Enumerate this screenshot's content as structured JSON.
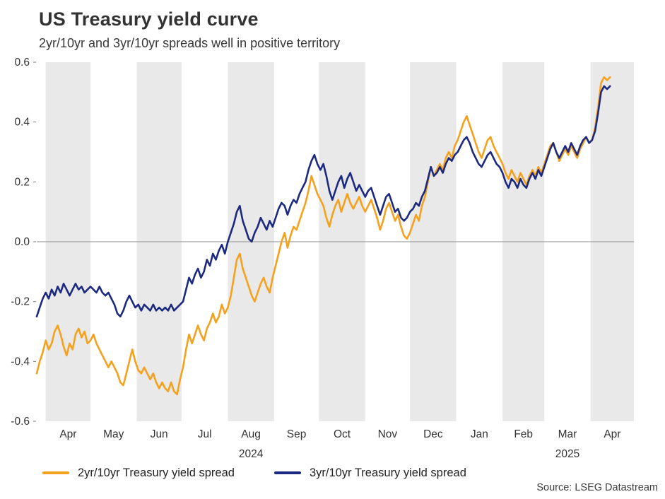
{
  "header": {
    "title": "US Treasury yield curve",
    "subtitle": "2yr/10yr and 3yr/10yr spreads well in positive territory"
  },
  "source": "Source: LSEG Datastream",
  "colors": {
    "orange": "#F6A11E",
    "navy": "#1B2A80",
    "band": "#E9E9E9",
    "zero_line": "#8E8E8E",
    "axis_text": "#333333"
  },
  "chart_data": {
    "type": "line",
    "title": "US Treasury yield curve",
    "subtitle": "2yr/10yr and 3yr/10yr spreads well in positive territory",
    "x_unit": "days since 2024-03-26",
    "x_domain": [
      0,
      400
    ],
    "y_domain": [
      -0.6,
      0.6
    ],
    "grid": "off",
    "zero_line": 0,
    "legend_position": "bottom",
    "y_ticks": [
      {
        "value": 0.6,
        "label": "0.6"
      },
      {
        "value": 0.4,
        "label": "0.4"
      },
      {
        "value": 0.2,
        "label": "0.2"
      },
      {
        "value": 0.0,
        "label": "0.0"
      },
      {
        "value": -0.2,
        "label": "-0.2"
      },
      {
        "value": -0.4,
        "label": "-0.4"
      },
      {
        "value": -0.6,
        "label": "-0.6"
      }
    ],
    "months": [
      {
        "label": "Apr",
        "start": 6,
        "end": 36,
        "shaded": true
      },
      {
        "label": "May",
        "start": 36,
        "end": 67,
        "shaded": false
      },
      {
        "label": "Jun",
        "start": 67,
        "end": 97,
        "shaded": true
      },
      {
        "label": "Jul",
        "start": 97,
        "end": 128,
        "shaded": false
      },
      {
        "label": "Aug",
        "start": 128,
        "end": 159,
        "shaded": true
      },
      {
        "label": "Sep",
        "start": 159,
        "end": 189,
        "shaded": false
      },
      {
        "label": "Oct",
        "start": 189,
        "end": 220,
        "shaded": true
      },
      {
        "label": "Nov",
        "start": 220,
        "end": 250,
        "shaded": false
      },
      {
        "label": "Dec",
        "start": 250,
        "end": 281,
        "shaded": true
      },
      {
        "label": "Jan",
        "start": 281,
        "end": 312,
        "shaded": false
      },
      {
        "label": "Feb",
        "start": 312,
        "end": 340,
        "shaded": true
      },
      {
        "label": "Mar",
        "start": 340,
        "end": 371,
        "shaded": false
      },
      {
        "label": "Apr",
        "start": 371,
        "end": 400,
        "shaded": true
      }
    ],
    "year_labels": [
      {
        "label": "2024",
        "day": 143.5
      },
      {
        "label": "2025",
        "day": 355.5
      }
    ],
    "x": {
      "start": 0,
      "step": 2,
      "count": 193
    },
    "series": [
      {
        "name": "2yr/10yr Treasury yield spread",
        "color_key": "orange",
        "values": [
          -0.44,
          -0.4,
          -0.37,
          -0.33,
          -0.36,
          -0.34,
          -0.3,
          -0.28,
          -0.31,
          -0.35,
          -0.38,
          -0.34,
          -0.36,
          -0.31,
          -0.29,
          -0.32,
          -0.3,
          -0.34,
          -0.33,
          -0.31,
          -0.34,
          -0.36,
          -0.38,
          -0.4,
          -0.42,
          -0.4,
          -0.42,
          -0.44,
          -0.47,
          -0.48,
          -0.44,
          -0.4,
          -0.36,
          -0.4,
          -0.43,
          -0.44,
          -0.42,
          -0.44,
          -0.46,
          -0.44,
          -0.47,
          -0.49,
          -0.47,
          -0.49,
          -0.5,
          -0.47,
          -0.5,
          -0.51,
          -0.46,
          -0.42,
          -0.36,
          -0.31,
          -0.34,
          -0.31,
          -0.28,
          -0.31,
          -0.33,
          -0.29,
          -0.27,
          -0.24,
          -0.27,
          -0.25,
          -0.21,
          -0.24,
          -0.22,
          -0.18,
          -0.12,
          -0.06,
          -0.04,
          -0.09,
          -0.12,
          -0.15,
          -0.18,
          -0.2,
          -0.17,
          -0.14,
          -0.12,
          -0.15,
          -0.17,
          -0.12,
          -0.08,
          -0.04,
          0.0,
          0.03,
          -0.02,
          0.02,
          0.05,
          0.04,
          0.07,
          0.1,
          0.13,
          0.17,
          0.22,
          0.19,
          0.16,
          0.14,
          0.12,
          0.08,
          0.05,
          0.09,
          0.12,
          0.14,
          0.1,
          0.13,
          0.16,
          0.13,
          0.11,
          0.13,
          0.15,
          0.12,
          0.1,
          0.12,
          0.14,
          0.11,
          0.08,
          0.04,
          0.07,
          0.11,
          0.13,
          0.1,
          0.07,
          0.09,
          0.05,
          0.02,
          0.01,
          0.03,
          0.06,
          0.09,
          0.07,
          0.12,
          0.15,
          0.2,
          0.25,
          0.22,
          0.24,
          0.26,
          0.24,
          0.28,
          0.3,
          0.28,
          0.32,
          0.34,
          0.37,
          0.4,
          0.42,
          0.39,
          0.36,
          0.33,
          0.3,
          0.28,
          0.31,
          0.34,
          0.35,
          0.32,
          0.3,
          0.28,
          0.26,
          0.23,
          0.21,
          0.24,
          0.22,
          0.2,
          0.23,
          0.21,
          0.19,
          0.22,
          0.24,
          0.22,
          0.25,
          0.23,
          0.26,
          0.29,
          0.32,
          0.33,
          0.3,
          0.27,
          0.29,
          0.31,
          0.29,
          0.32,
          0.3,
          0.28,
          0.31,
          0.33,
          0.35,
          0.33,
          0.34,
          0.38,
          0.45,
          0.53,
          0.55,
          0.54,
          0.55
        ]
      },
      {
        "name": "3yr/10yr Treasury yield spread",
        "color_key": "navy",
        "values": [
          -0.25,
          -0.22,
          -0.19,
          -0.17,
          -0.19,
          -0.16,
          -0.18,
          -0.15,
          -0.17,
          -0.14,
          -0.16,
          -0.18,
          -0.16,
          -0.14,
          -0.16,
          -0.15,
          -0.17,
          -0.16,
          -0.15,
          -0.16,
          -0.17,
          -0.15,
          -0.17,
          -0.18,
          -0.17,
          -0.19,
          -0.21,
          -0.24,
          -0.25,
          -0.23,
          -0.2,
          -0.18,
          -0.2,
          -0.22,
          -0.21,
          -0.23,
          -0.21,
          -0.22,
          -0.23,
          -0.21,
          -0.23,
          -0.22,
          -0.23,
          -0.22,
          -0.23,
          -0.21,
          -0.23,
          -0.22,
          -0.21,
          -0.2,
          -0.16,
          -0.12,
          -0.14,
          -0.11,
          -0.09,
          -0.12,
          -0.1,
          -0.06,
          -0.08,
          -0.04,
          -0.06,
          -0.03,
          -0.01,
          -0.04,
          0.0,
          0.03,
          0.06,
          0.1,
          0.12,
          0.07,
          0.04,
          0.01,
          0.0,
          0.03,
          0.05,
          0.08,
          0.06,
          0.04,
          0.07,
          0.05,
          0.08,
          0.11,
          0.13,
          0.12,
          0.09,
          0.12,
          0.14,
          0.13,
          0.16,
          0.18,
          0.2,
          0.24,
          0.27,
          0.29,
          0.26,
          0.24,
          0.26,
          0.22,
          0.17,
          0.14,
          0.17,
          0.2,
          0.22,
          0.18,
          0.21,
          0.23,
          0.2,
          0.17,
          0.19,
          0.17,
          0.15,
          0.17,
          0.18,
          0.15,
          0.12,
          0.09,
          0.12,
          0.15,
          0.16,
          0.13,
          0.1,
          0.11,
          0.08,
          0.07,
          0.08,
          0.1,
          0.11,
          0.13,
          0.12,
          0.15,
          0.17,
          0.21,
          0.25,
          0.22,
          0.23,
          0.25,
          0.23,
          0.26,
          0.28,
          0.27,
          0.29,
          0.3,
          0.32,
          0.34,
          0.35,
          0.33,
          0.3,
          0.28,
          0.26,
          0.25,
          0.27,
          0.29,
          0.3,
          0.28,
          0.26,
          0.25,
          0.23,
          0.2,
          0.18,
          0.21,
          0.2,
          0.18,
          0.21,
          0.19,
          0.18,
          0.21,
          0.23,
          0.21,
          0.24,
          0.22,
          0.25,
          0.28,
          0.31,
          0.33,
          0.3,
          0.28,
          0.3,
          0.32,
          0.3,
          0.33,
          0.31,
          0.29,
          0.32,
          0.34,
          0.35,
          0.33,
          0.34,
          0.37,
          0.43,
          0.5,
          0.52,
          0.51,
          0.52
        ]
      }
    ]
  }
}
